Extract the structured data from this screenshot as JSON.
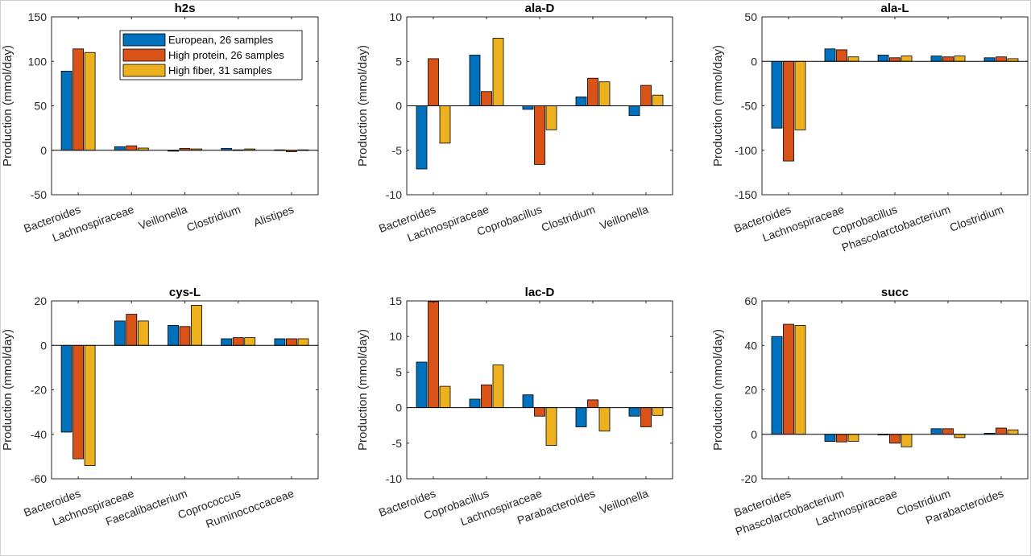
{
  "legend": {
    "entries": [
      {
        "label": "European, 26 samples",
        "color": "#0072BD"
      },
      {
        "label": "High protein, 26 samples",
        "color": "#D95319"
      },
      {
        "label": "High fiber, 31 samples",
        "color": "#EDB120"
      }
    ],
    "placement": "top-right of first chart"
  },
  "chart_data": [
    {
      "type": "bar",
      "title": "h2s",
      "ylabel": "Production (mmol/day)",
      "ylim": [
        -50,
        150
      ],
      "yticks": [
        -50,
        0,
        50,
        100,
        150
      ],
      "categories": [
        "Bacteroides",
        "Lachnospiraceae",
        "Veillonella",
        "Clostridium",
        "Alistipes"
      ],
      "series": [
        {
          "name": "European, 26 samples",
          "values": [
            89,
            4,
            -1,
            2,
            0.5
          ]
        },
        {
          "name": "High protein, 26 samples",
          "values": [
            114,
            5,
            2,
            0.5,
            -1.5
          ]
        },
        {
          "name": "High fiber, 31 samples",
          "values": [
            110,
            2.5,
            1.5,
            1.5,
            0.5
          ]
        }
      ]
    },
    {
      "type": "bar",
      "title": "ala-D",
      "ylabel": "Production (mmol/day)",
      "ylim": [
        -10,
        10
      ],
      "yticks": [
        -10,
        -5,
        0,
        5,
        10
      ],
      "categories": [
        "Bacteroides",
        "Lachnospiraceae",
        "Coprobacillus",
        "Clostridium",
        "Veillonella"
      ],
      "series": [
        {
          "name": "European, 26 samples",
          "values": [
            -7.1,
            5.7,
            -0.4,
            1.0,
            -1.1
          ]
        },
        {
          "name": "High protein, 26 samples",
          "values": [
            5.3,
            1.6,
            -6.6,
            3.1,
            2.3
          ]
        },
        {
          "name": "High fiber, 31 samples",
          "values": [
            -4.2,
            7.6,
            -2.7,
            2.7,
            1.2
          ]
        }
      ]
    },
    {
      "type": "bar",
      "title": "ala-L",
      "ylabel": "Production (mmol/day)",
      "ylim": [
        -150,
        50
      ],
      "yticks": [
        -150,
        -100,
        -50,
        0,
        50
      ],
      "categories": [
        "Bacteroides",
        "Lachnospiraceae",
        "Coprobacillus",
        "Phascolarctobacterium",
        "Clostridium"
      ],
      "series": [
        {
          "name": "European, 26 samples",
          "values": [
            -75,
            14,
            7,
            6,
            4
          ]
        },
        {
          "name": "High protein, 26 samples",
          "values": [
            -112,
            13,
            4,
            5,
            5
          ]
        },
        {
          "name": "High fiber, 31 samples",
          "values": [
            -77,
            5,
            6,
            6,
            3
          ]
        }
      ]
    },
    {
      "type": "bar",
      "title": "cys-L",
      "ylabel": "Production (mmol/day)",
      "ylim": [
        -60,
        20
      ],
      "yticks": [
        -60,
        -40,
        -20,
        0,
        20
      ],
      "categories": [
        "Bacteroides",
        "Lachnospiraceae",
        "Faecalibacterium",
        "Coprococcus",
        "Ruminococcaceae"
      ],
      "series": [
        {
          "name": "European, 26 samples",
          "values": [
            -39,
            11,
            9,
            3,
            3
          ]
        },
        {
          "name": "High protein, 26 samples",
          "values": [
            -51,
            14,
            8.5,
            3.5,
            3
          ]
        },
        {
          "name": "High fiber, 31 samples",
          "values": [
            -54,
            11,
            18,
            3.5,
            3
          ]
        }
      ]
    },
    {
      "type": "bar",
      "title": "lac-D",
      "ylabel": "Production (mmol/day)",
      "ylim": [
        -10,
        15
      ],
      "yticks": [
        -10,
        -5,
        0,
        5,
        10,
        15
      ],
      "categories": [
        "Bacteroides",
        "Coprobacillus",
        "Lachnospiraceae",
        "Parabacteroides",
        "Veillonella"
      ],
      "series": [
        {
          "name": "European, 26 samples",
          "values": [
            6.4,
            1.2,
            1.8,
            -2.7,
            -1.2
          ]
        },
        {
          "name": "High protein, 26 samples",
          "values": [
            14.9,
            3.2,
            -1.2,
            1.1,
            -2.7
          ]
        },
        {
          "name": "High fiber, 31 samples",
          "values": [
            3.0,
            6.0,
            -5.3,
            -3.3,
            -1.1
          ]
        }
      ]
    },
    {
      "type": "bar",
      "title": "succ",
      "ylabel": "Production (mmol/day)",
      "ylim": [
        -20,
        60
      ],
      "yticks": [
        -20,
        0,
        20,
        40,
        60
      ],
      "categories": [
        "Bacteroides",
        "Phascolarctobacterium",
        "Lachnospiraceae",
        "Clostridium",
        "Parabacteroides"
      ],
      "series": [
        {
          "name": "European, 26 samples",
          "values": [
            44,
            -3.2,
            -0.3,
            2.5,
            0.5
          ]
        },
        {
          "name": "High protein, 26 samples",
          "values": [
            49.5,
            -3.4,
            -4,
            2.5,
            2.8
          ]
        },
        {
          "name": "High fiber, 31 samples",
          "values": [
            49,
            -3.1,
            -5.6,
            -1.5,
            2
          ]
        }
      ]
    }
  ]
}
